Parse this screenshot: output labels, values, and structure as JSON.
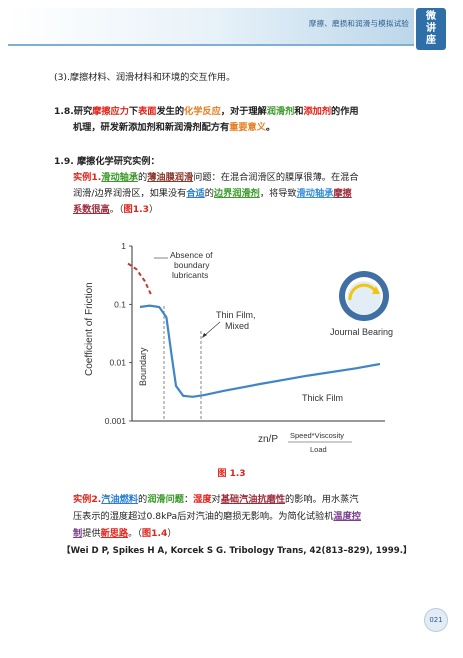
{
  "header": {
    "title": "摩擦、磨损和润滑与模拟试验",
    "badge": [
      "微",
      "讲",
      "座"
    ]
  },
  "item3": "(3).摩擦材料、润滑材料和环境的交互作用。",
  "sec18": {
    "num": "1.8.",
    "p1": "研究",
    "k1": "摩擦应力",
    "p2": "下",
    "k2": "表面",
    "p3": "发生的",
    "k3": "化学反应",
    "p4": "，对于理解",
    "k4": "润滑剂",
    "p5": "和",
    "k5": "添加剂",
    "p6": "的作用",
    "l2a": "机理，研发新添加剂和新润滑剂配方有",
    "k6": "重要意义",
    "l2b": "。"
  },
  "sec19": {
    "heading": "1.9. 摩擦化学研究实例：",
    "ex1_label": "实例1.",
    "ex1_k1": "滑动轴承",
    "ex1_p1": "的",
    "ex1_k2": "薄油膜润滑",
    "ex1_p2": "问题：在混合润滑区的膜厚很薄。在混合",
    "ex1_l2a": "润滑/边界润滑区，如果没有",
    "ex1_k3": "合适",
    "ex1_p3": "的",
    "ex1_k4": "边界润滑剂",
    "ex1_p4": "，将导致",
    "ex1_k5": "滑动轴承",
    "ex1_k6": "摩擦",
    "ex1_l3a": "系数很高",
    "ex1_l3b": "。（",
    "ex1_ref": "图1.3",
    "ex1_l3c": "）"
  },
  "figure": {
    "caption": "图 1.3",
    "chart_data": {
      "type": "line",
      "title": "",
      "xlabel": "zn/P",
      "x_formula_top": "Speed*Viscosity",
      "x_formula_bottom": "Load",
      "ylabel": "Coefficient of Friction",
      "yscale": "log",
      "ylim": [
        0.001,
        1
      ],
      "yticks": [
        "1",
        "0.1",
        "0.01",
        "0.001"
      ],
      "x_relative": [
        0.0,
        0.04,
        0.08,
        0.11,
        0.13,
        0.15,
        0.18,
        0.22,
        0.27,
        0.35,
        0.5,
        0.7,
        0.9,
        1.0
      ],
      "series": [
        {
          "values": [
            0.09,
            0.095,
            0.09,
            0.06,
            0.015,
            0.004,
            0.0027,
            0.0026,
            0.0028,
            0.0033,
            0.0043,
            0.006,
            0.008,
            0.0095
          ]
        }
      ],
      "no_boundary_values": [
        0.5,
        0.4,
        0.25,
        0.15
      ],
      "annotations": {
        "absence_line1": "Absence of",
        "absence_line2": "boundary",
        "absence_line3": "lubricants",
        "thin_film_line1": "Thin Film,",
        "thin_film_line2": "Mixed",
        "thick_film": "Thick Film",
        "boundary": "Boundary",
        "journal_bearing": "Journal Bearing"
      }
    }
  },
  "ex2": {
    "label": "实例2.",
    "k1": "汽油燃料",
    "p1": "的",
    "k2": "润滑问题",
    "p2": "：",
    "k3": "湿度",
    "p3": "对",
    "k4": "基础汽油抗磨性",
    "p4": "的影响。用水蒸汽",
    "l2": "压表示的湿度超过0.8kPa后对汽油的磨损无影响。为简化试验机",
    "k5": "温度控",
    "l3k": "制",
    "l3a": "提供",
    "k6": "新思路",
    "l3b": "。（",
    "ref": "图1.4",
    "l3c": "）"
  },
  "reference": "【Wei D P, Spikes H A, Korcek S G. Tribology Trans, 42(813–829), 1999.】",
  "page_number": "021",
  "colors": {
    "accent_blue": "#2f6fa8",
    "highlight_red": "#e2231a",
    "highlight_green": "#3a9a2a",
    "curve_blue": "#3f86c8",
    "dashed_red": "#c0392b"
  }
}
